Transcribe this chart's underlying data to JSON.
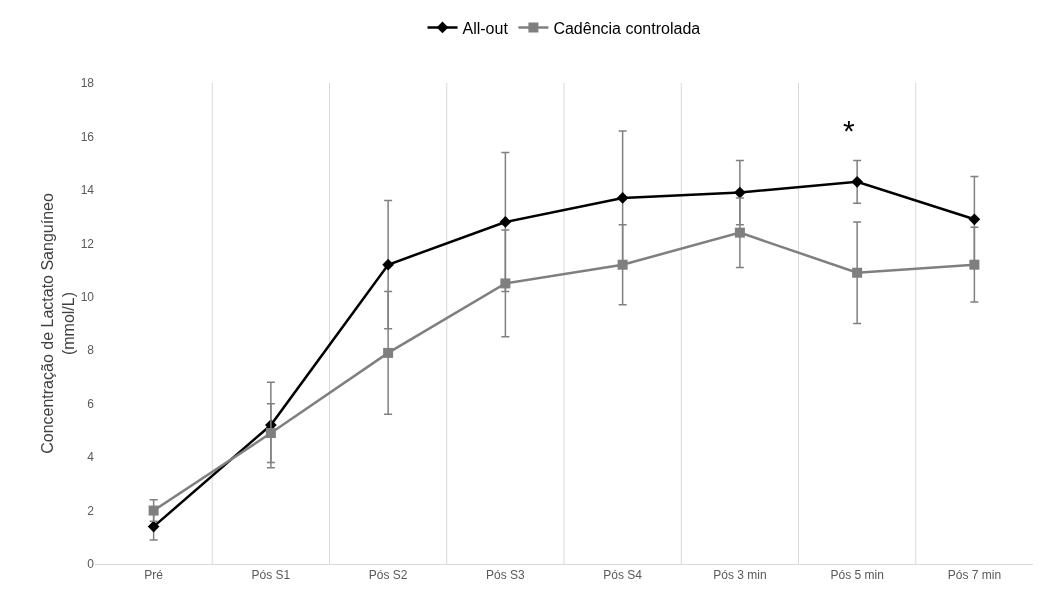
{
  "chart_data": {
    "type": "line",
    "ylabel": "Concentração de Lactato Sanguíneo\n(mmol/L)",
    "categories": [
      "Pré",
      "Pós S1",
      "Pós S2",
      "Pós S3",
      "Pós S4",
      "Pós 3 min",
      "Pós 5 min",
      "Pós 7 min"
    ],
    "series": [
      {
        "name": "All-out",
        "color": "#000000",
        "marker": "diamond",
        "values": [
          1.4,
          5.2,
          11.2,
          12.8,
          13.7,
          13.9,
          14.3,
          12.9
        ],
        "errors": [
          0.5,
          1.6,
          2.4,
          2.6,
          2.5,
          1.2,
          0.8,
          1.6
        ]
      },
      {
        "name": "Cadência controlada",
        "color": "#7f7f7f",
        "marker": "square",
        "values": [
          2.0,
          4.9,
          7.9,
          10.5,
          11.2,
          12.4,
          10.9,
          11.2
        ],
        "errors": [
          0.4,
          1.1,
          2.3,
          2.0,
          1.5,
          1.3,
          1.9,
          1.4
        ]
      }
    ],
    "ylim": [
      0,
      18
    ],
    "yticks": [
      0,
      2,
      4,
      6,
      8,
      10,
      12,
      14,
      16,
      18
    ],
    "annotations": [
      "*"
    ],
    "grid": "x",
    "legend": "top",
    "line_style": "solid"
  }
}
